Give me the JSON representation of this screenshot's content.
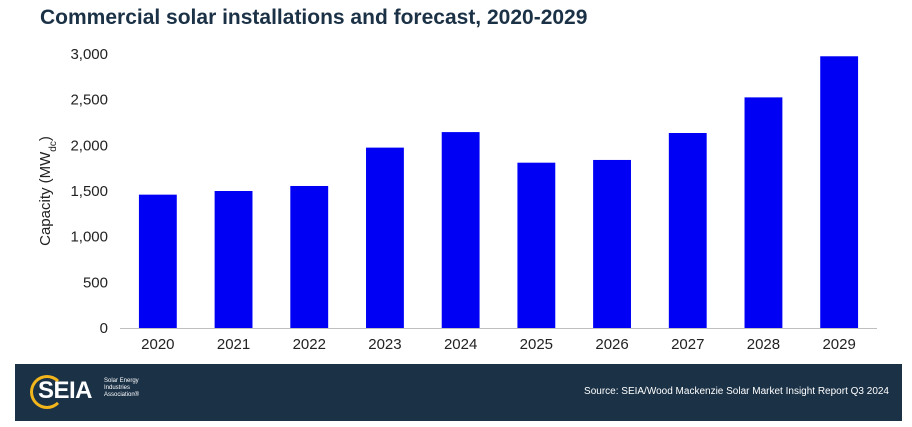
{
  "chart_data": {
    "type": "bar",
    "title": "Commercial solar installations and forecast, 2020-2029",
    "ylabel_main": "Capacity (MW",
    "ylabel_sub": "dc",
    "ylabel_end": ")",
    "xlabel": "",
    "categories": [
      "2020",
      "2021",
      "2022",
      "2023",
      "2024",
      "2025",
      "2026",
      "2027",
      "2028",
      "2029"
    ],
    "values": [
      1460,
      1500,
      1555,
      1975,
      2145,
      1810,
      1840,
      2135,
      2525,
      2975
    ],
    "ylim": [
      0,
      3000
    ],
    "yticks": [
      0,
      500,
      1000,
      1500,
      2000,
      2500,
      3000
    ],
    "ytick_labels": [
      "0",
      "500",
      "1,000",
      "1,500",
      "2,000",
      "2,500",
      "3,000"
    ],
    "bar_color": "#0000f5",
    "grid": false
  },
  "footer": {
    "logo_text": "SEIA",
    "logo_line1": "Solar Energy",
    "logo_line2": "Industries",
    "logo_line3": "Association®",
    "source": "Source: SEIA/Wood Mackenzie Solar Market Insight Report Q3 2024"
  },
  "colors": {
    "title": "#1b3146",
    "footer_bg": "#1b3146",
    "logo_accent": "#f2b51b"
  }
}
